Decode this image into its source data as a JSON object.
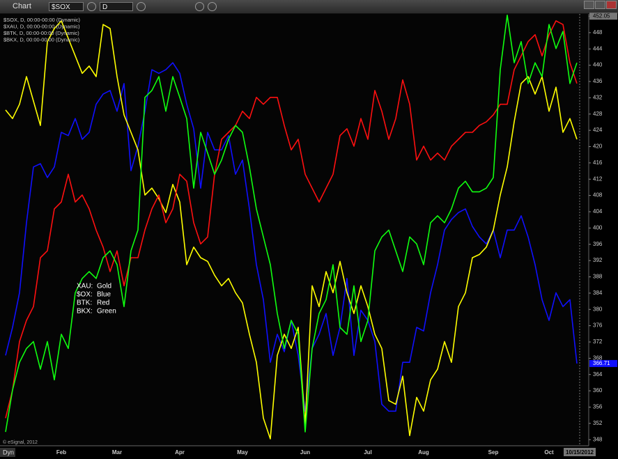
{
  "toolbar": {
    "title": "Chart",
    "symbol": "$SOX",
    "interval": "D"
  },
  "footer": {
    "mode": "Dyn",
    "copyright": "© eSignal, 2012"
  },
  "chart_data": {
    "type": "line",
    "categories": [
      null,
      null,
      null,
      null,
      null,
      null,
      null,
      null,
      "Feb",
      null,
      null,
      null,
      null,
      null,
      null,
      null,
      "Mar",
      null,
      null,
      null,
      null,
      null,
      null,
      null,
      null,
      "Apr",
      null,
      null,
      null,
      null,
      null,
      null,
      null,
      null,
      "May",
      null,
      null,
      null,
      null,
      null,
      null,
      null,
      null,
      "Jun",
      null,
      null,
      null,
      null,
      null,
      null,
      null,
      null,
      "Jul",
      null,
      null,
      null,
      null,
      null,
      null,
      null,
      "Aug",
      null,
      null,
      null,
      null,
      null,
      null,
      null,
      null,
      null,
      "Sep",
      null,
      null,
      null,
      null,
      null,
      null,
      null,
      "Oct",
      null,
      null,
      null,
      "10/15/2012"
    ],
    "ylim": [
      346.5,
      452.6
    ],
    "yticks": [
      348,
      352,
      356,
      360,
      364,
      368,
      372,
      376,
      380,
      384,
      388,
      392,
      396,
      400,
      404,
      408,
      412,
      416,
      420,
      424,
      428,
      432,
      436,
      440,
      444,
      448,
      452.05
    ],
    "annotations": [
      [
        "XAU:",
        "Gold"
      ],
      [
        "$OX:",
        "Blue"
      ],
      [
        "BTK:",
        "Red"
      ],
      [
        "BKX:",
        "Green"
      ]
    ],
    "series": [
      {
        "name": "$SOX, D, 00:00-00:00 (Dynamic)",
        "color": "#1010ff",
        "values": [
          368.7,
          375.6,
          384.1,
          401.3,
          415,
          415.8,
          412.4,
          415,
          423.5,
          422.7,
          426.9,
          421.8,
          423.5,
          430.4,
          432.9,
          433.8,
          428.7,
          435.5,
          414.1,
          420.1,
          428.7,
          438.9,
          438,
          438.9,
          440.6,
          438,
          430.4,
          424.4,
          409.8,
          423.5,
          419.2,
          419.2,
          422.7,
          413.2,
          416.7,
          404.7,
          391,
          382.4,
          367,
          373.9,
          369.6,
          377.3,
          368.7,
          355,
          370.4,
          373.9,
          379,
          368.7,
          375.6,
          387.6,
          368.7,
          379.8,
          377.3,
          372.1,
          356.7,
          355,
          355,
          367,
          367,
          375.6,
          374.7,
          384.1,
          391,
          399.5,
          402.1,
          403.8,
          404.7,
          400.4,
          397.8,
          396.1,
          399.5,
          392.7,
          399.5,
          399.5,
          403,
          397.8,
          391,
          382.4,
          377.3,
          384.1,
          380.7,
          382.4,
          366.71
        ]
      },
      {
        "name": "$XAU, D, 00:00-00:00 (Dynamic)",
        "color": "#ffff00",
        "values": [
          429,
          426.9,
          430.4,
          437.2,
          431.2,
          425.2,
          445.8,
          449,
          450.9,
          446.6,
          442.3,
          438,
          439.8,
          437.2,
          450,
          449,
          437.2,
          427.8,
          423.5,
          419.2,
          408.1,
          409.8,
          407.2,
          403.8,
          410.7,
          406.4,
          391,
          395.3,
          392.7,
          391.8,
          388.4,
          385.8,
          387.6,
          384.1,
          381.6,
          373.9,
          367,
          353.3,
          348.2,
          368.7,
          373.9,
          370.4,
          375.6,
          351.6,
          385.8,
          380.7,
          389.3,
          384.1,
          391.8,
          384.1,
          379,
          385.8,
          380.7,
          373.9,
          370.4,
          357.6,
          356.7,
          363.6,
          349,
          358.4,
          355,
          362.7,
          365.3,
          372.1,
          367,
          380.7,
          384.1,
          392.7,
          393.5,
          395.3,
          399.5,
          408.1,
          415,
          426.1,
          435.5,
          437.2,
          432.9,
          437.2,
          428.7,
          434.6,
          423.5,
          426.9,
          421.8
        ]
      },
      {
        "name": "$BTK, D, 00:00-00:00 (Dynamic)",
        "color": "#ff1010",
        "values": [
          353.3,
          360.2,
          372.1,
          377.3,
          380.7,
          392.7,
          394.4,
          404.7,
          406.4,
          413.2,
          406.4,
          408.1,
          404.7,
          399.5,
          395.3,
          389.3,
          394.4,
          385.8,
          392.7,
          392.7,
          399.5,
          404.7,
          408.1,
          401.3,
          404.7,
          413.2,
          411.5,
          401.3,
          396.1,
          397.8,
          413.2,
          421.8,
          423.5,
          425.2,
          428.7,
          426.9,
          432.1,
          430.4,
          432.1,
          432.1,
          425.2,
          419.2,
          421.8,
          413.2,
          409.8,
          406.4,
          409.8,
          413.2,
          422.7,
          424.4,
          420.1,
          426.9,
          421.8,
          433.8,
          428.7,
          421.8,
          426.9,
          436.4,
          430.4,
          416.7,
          420.1,
          416.7,
          418.4,
          416.7,
          420.1,
          421.8,
          423.5,
          423.5,
          425.2,
          426.1,
          427.8,
          430.4,
          430.4,
          438.9,
          442.3,
          445.8,
          447.5,
          442.3,
          447.5,
          450.9,
          450,
          440.6,
          435.5
        ]
      },
      {
        "name": "$BKX, D, 00:00-00:00 (Dynamic)",
        "color": "#10ff10",
        "values": [
          349.9,
          360.2,
          367,
          370.4,
          372.1,
          365.3,
          372.1,
          362.7,
          373.9,
          370.4,
          384.1,
          387.6,
          389.3,
          387.6,
          392.7,
          394.4,
          391,
          380.7,
          394.4,
          399.5,
          432.1,
          433.8,
          437.2,
          428.7,
          437.2,
          432.1,
          426.9,
          409.8,
          423.5,
          418.4,
          413.2,
          416.7,
          421.8,
          425.2,
          423.5,
          415,
          404.7,
          397.8,
          391,
          379,
          370.4,
          377.3,
          373.9,
          349.9,
          370.4,
          379,
          382.4,
          391,
          375.6,
          373.9,
          385.8,
          372.1,
          377.3,
          394.4,
          397.8,
          399.5,
          394.4,
          389.3,
          397.8,
          396.1,
          391,
          401.3,
          403,
          401.3,
          404.7,
          409.8,
          411.5,
          408.9,
          408.9,
          409.8,
          412.4,
          438.9,
          452.3,
          440.6,
          445.8,
          435.5,
          440.6,
          437.2,
          450,
          444.1,
          448.3,
          435.5,
          440.6
        ]
      }
    ]
  }
}
